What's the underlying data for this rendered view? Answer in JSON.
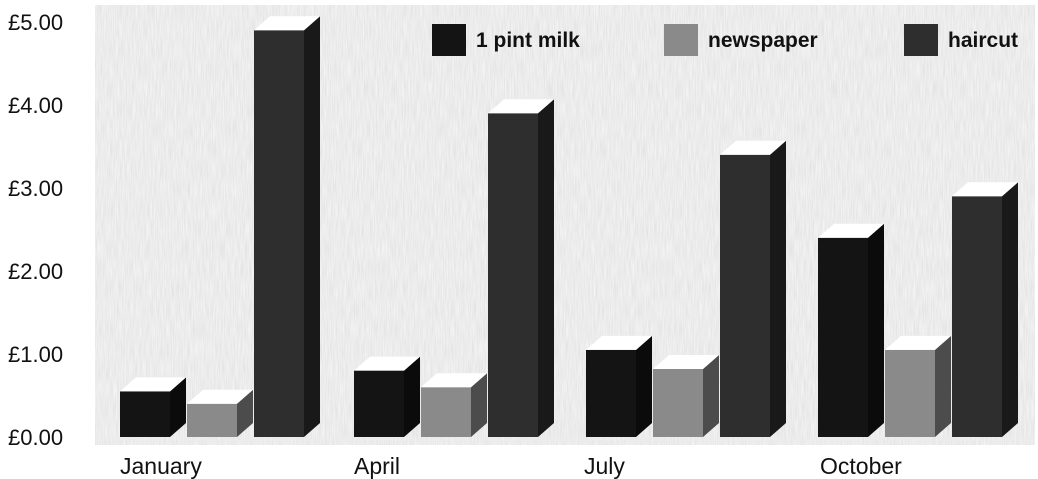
{
  "chart_data": {
    "type": "bar",
    "title": "",
    "xlabel": "",
    "ylabel": "",
    "categories": [
      "January",
      "April",
      "July",
      "October"
    ],
    "series": [
      {
        "name": "1 pint milk",
        "values": [
          0.55,
          0.8,
          1.05,
          2.4
        ],
        "color": "#141414"
      },
      {
        "name": "newspaper",
        "values": [
          0.4,
          0.6,
          0.82,
          1.05
        ],
        "color": "#8a8a8a"
      },
      {
        "name": "haircut",
        "values": [
          4.9,
          3.9,
          3.4,
          2.9
        ],
        "color": "#2e2e2e"
      }
    ],
    "ylim": [
      0,
      5
    ],
    "yticks": [
      "£0.00",
      "£1.00",
      "£2.00",
      "£3.00",
      "£4.00",
      "£5.00"
    ],
    "legend_position": "top-right",
    "style": "3d",
    "background": "newspaper texture"
  }
}
